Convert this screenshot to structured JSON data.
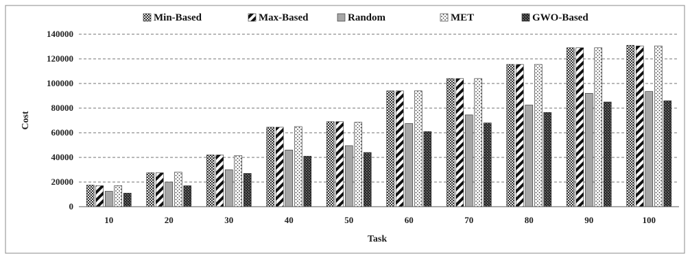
{
  "chart_data": {
    "type": "bar",
    "title": "",
    "xlabel": "Task",
    "ylabel": "Cost",
    "ylim": [
      0,
      140000
    ],
    "yticks": [
      "0",
      "20000",
      "40000",
      "60000",
      "80000",
      "100000",
      "120000",
      "140000"
    ],
    "ytick_values": [
      0,
      20000,
      40000,
      60000,
      80000,
      100000,
      120000,
      140000
    ],
    "grid": "horizontal-dashed",
    "legend_position": "top",
    "categories": [
      "10",
      "20",
      "30",
      "40",
      "50",
      "60",
      "70",
      "80",
      "90",
      "100"
    ],
    "series": [
      {
        "name": "Min-Based",
        "pattern": "crosshatch",
        "color": "#444444",
        "values": [
          17500,
          27500,
          42000,
          64500,
          69000,
          94000,
          104000,
          115500,
          129000,
          131000
        ]
      },
      {
        "name": "Max-Based",
        "pattern": "diagonal",
        "color": "#111111",
        "values": [
          17000,
          27500,
          42000,
          64500,
          69000,
          94000,
          104000,
          115500,
          129000,
          130500
        ]
      },
      {
        "name": "Random",
        "pattern": "solid",
        "color": "#a6a6a6",
        "values": [
          12500,
          20000,
          30000,
          46000,
          49500,
          67500,
          74500,
          82500,
          92000,
          93500
        ]
      },
      {
        "name": "MET",
        "pattern": "dots",
        "color": "#333333",
        "values": [
          17000,
          28000,
          41500,
          65000,
          68500,
          94000,
          104000,
          115500,
          129000,
          130500
        ]
      },
      {
        "name": "GWO-Based",
        "pattern": "checker",
        "color": "#333333",
        "values": [
          11000,
          17000,
          27000,
          41000,
          44000,
          61000,
          68000,
          76500,
          85000,
          86000
        ]
      }
    ]
  }
}
